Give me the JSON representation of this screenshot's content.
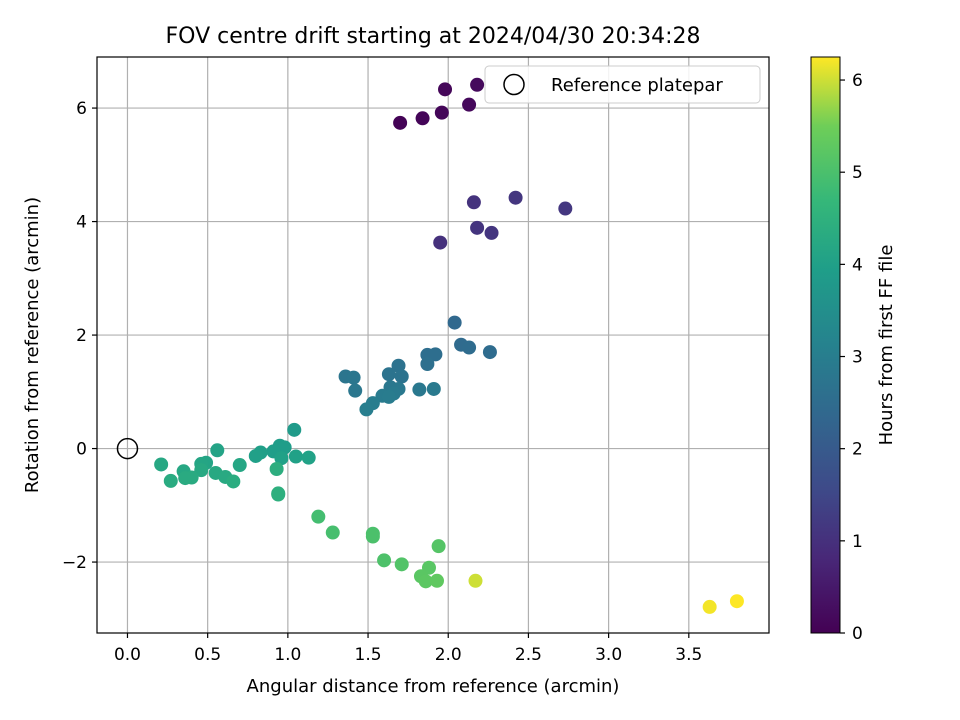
{
  "chart_data": {
    "type": "scatter",
    "title": "FOV centre drift starting at 2024/04/30 20:34:28",
    "xlabel": "Angular distance from reference (arcmin)",
    "ylabel": "Rotation from reference (arcmin)",
    "xlim": [
      -0.19,
      4.0
    ],
    "ylim": [
      -3.25,
      6.9
    ],
    "xticks": [
      0.0,
      0.5,
      1.0,
      1.5,
      2.0,
      2.5,
      3.0,
      3.5
    ],
    "xtick_labels": [
      "0.0",
      "0.5",
      "1.0",
      "1.5",
      "2.0",
      "2.5",
      "3.0",
      "3.5"
    ],
    "yticks": [
      -2,
      0,
      2,
      4,
      6
    ],
    "ytick_labels": [
      "−2",
      "0",
      "2",
      "4",
      "6"
    ],
    "grid": true,
    "legend": {
      "placement": "upper right",
      "entries": [
        "Reference platepar"
      ]
    },
    "reference_point": {
      "x": 0.0,
      "y": 0.0,
      "label": "Reference platepar"
    },
    "colorbar": {
      "label": "Hours from first FF file",
      "colormap": "viridis",
      "range": [
        0,
        6.25
      ],
      "ticks": [
        0,
        1,
        2,
        3,
        4,
        5,
        6
      ],
      "tick_labels": [
        "0",
        "1",
        "2",
        "3",
        "4",
        "5",
        "6"
      ]
    },
    "series": [
      {
        "points": [
          {
            "x": 1.7,
            "y": 5.74,
            "c": 0.05
          },
          {
            "x": 1.84,
            "y": 5.82,
            "c": 0.08
          },
          {
            "x": 1.96,
            "y": 5.92,
            "c": 0.1
          },
          {
            "x": 1.98,
            "y": 6.33,
            "c": 0.12
          },
          {
            "x": 2.13,
            "y": 6.06,
            "c": 0.15
          },
          {
            "x": 2.18,
            "y": 6.41,
            "c": 0.18
          },
          {
            "x": 1.95,
            "y": 3.63,
            "c": 1.0
          },
          {
            "x": 2.16,
            "y": 4.34,
            "c": 1.05
          },
          {
            "x": 2.18,
            "y": 3.89,
            "c": 1.08
          },
          {
            "x": 2.27,
            "y": 3.8,
            "c": 1.1
          },
          {
            "x": 2.42,
            "y": 4.42,
            "c": 1.12
          },
          {
            "x": 2.73,
            "y": 4.23,
            "c": 1.15
          },
          {
            "x": 2.04,
            "y": 2.22,
            "c": 2.4
          },
          {
            "x": 2.08,
            "y": 1.83,
            "c": 2.45
          },
          {
            "x": 2.13,
            "y": 1.78,
            "c": 2.5
          },
          {
            "x": 2.26,
            "y": 1.7,
            "c": 2.5
          },
          {
            "x": 1.87,
            "y": 1.65,
            "c": 2.55
          },
          {
            "x": 1.92,
            "y": 1.66,
            "c": 2.55
          },
          {
            "x": 1.87,
            "y": 1.49,
            "c": 2.6
          },
          {
            "x": 1.69,
            "y": 1.46,
            "c": 2.65
          },
          {
            "x": 1.71,
            "y": 1.27,
            "c": 2.7
          },
          {
            "x": 1.63,
            "y": 1.31,
            "c": 2.7
          },
          {
            "x": 1.36,
            "y": 1.27,
            "c": 2.75
          },
          {
            "x": 1.41,
            "y": 1.25,
            "c": 2.78
          },
          {
            "x": 1.42,
            "y": 1.02,
            "c": 2.8
          },
          {
            "x": 1.64,
            "y": 1.08,
            "c": 2.82
          },
          {
            "x": 1.69,
            "y": 1.05,
            "c": 2.85
          },
          {
            "x": 1.82,
            "y": 1.04,
            "c": 2.85
          },
          {
            "x": 1.91,
            "y": 1.05,
            "c": 2.88
          },
          {
            "x": 1.66,
            "y": 0.97,
            "c": 2.9
          },
          {
            "x": 1.59,
            "y": 0.93,
            "c": 2.92
          },
          {
            "x": 1.63,
            "y": 0.91,
            "c": 2.95
          },
          {
            "x": 1.53,
            "y": 0.8,
            "c": 2.98
          },
          {
            "x": 1.49,
            "y": 0.69,
            "c": 3.0
          },
          {
            "x": 1.04,
            "y": 0.33,
            "c": 3.85
          },
          {
            "x": 0.95,
            "y": 0.05,
            "c": 3.9
          },
          {
            "x": 0.98,
            "y": 0.02,
            "c": 3.92
          },
          {
            "x": 0.91,
            "y": -0.05,
            "c": 3.95
          },
          {
            "x": 0.83,
            "y": -0.07,
            "c": 3.97
          },
          {
            "x": 0.8,
            "y": -0.13,
            "c": 4.0
          },
          {
            "x": 0.96,
            "y": -0.17,
            "c": 4.02
          },
          {
            "x": 1.05,
            "y": -0.14,
            "c": 4.02
          },
          {
            "x": 1.13,
            "y": -0.16,
            "c": 4.05
          },
          {
            "x": 0.56,
            "y": -0.03,
            "c": 4.1
          },
          {
            "x": 0.49,
            "y": -0.25,
            "c": 4.12
          },
          {
            "x": 0.46,
            "y": -0.27,
            "c": 4.15
          },
          {
            "x": 0.7,
            "y": -0.29,
            "c": 4.18
          },
          {
            "x": 0.21,
            "y": -0.28,
            "c": 4.2
          },
          {
            "x": 0.35,
            "y": -0.4,
            "c": 4.22
          },
          {
            "x": 0.46,
            "y": -0.38,
            "c": 4.25
          },
          {
            "x": 0.55,
            "y": -0.43,
            "c": 4.25
          },
          {
            "x": 0.61,
            "y": -0.5,
            "c": 4.28
          },
          {
            "x": 0.4,
            "y": -0.51,
            "c": 4.3
          },
          {
            "x": 0.36,
            "y": -0.52,
            "c": 4.3
          },
          {
            "x": 0.27,
            "y": -0.57,
            "c": 4.32
          },
          {
            "x": 0.66,
            "y": -0.58,
            "c": 4.35
          },
          {
            "x": 0.93,
            "y": -0.36,
            "c": 4.4
          },
          {
            "x": 0.94,
            "y": -0.81,
            "c": 4.45
          },
          {
            "x": 0.94,
            "y": -0.79,
            "c": 4.45
          },
          {
            "x": 1.19,
            "y": -1.2,
            "c": 4.9
          },
          {
            "x": 1.28,
            "y": -1.48,
            "c": 4.95
          },
          {
            "x": 1.53,
            "y": -1.5,
            "c": 5.0
          },
          {
            "x": 1.53,
            "y": -1.55,
            "c": 5.02
          },
          {
            "x": 1.6,
            "y": -1.97,
            "c": 5.05
          },
          {
            "x": 1.71,
            "y": -2.04,
            "c": 5.1
          },
          {
            "x": 1.94,
            "y": -1.72,
            "c": 5.15
          },
          {
            "x": 1.88,
            "y": -2.1,
            "c": 5.2
          },
          {
            "x": 1.83,
            "y": -2.25,
            "c": 5.22
          },
          {
            "x": 1.86,
            "y": -2.34,
            "c": 5.25
          },
          {
            "x": 1.93,
            "y": -2.33,
            "c": 5.3
          },
          {
            "x": 2.17,
            "y": -2.33,
            "c": 6.0
          },
          {
            "x": 3.63,
            "y": -2.79,
            "c": 6.2
          },
          {
            "x": 3.8,
            "y": -2.69,
            "c": 6.25
          }
        ]
      }
    ]
  }
}
